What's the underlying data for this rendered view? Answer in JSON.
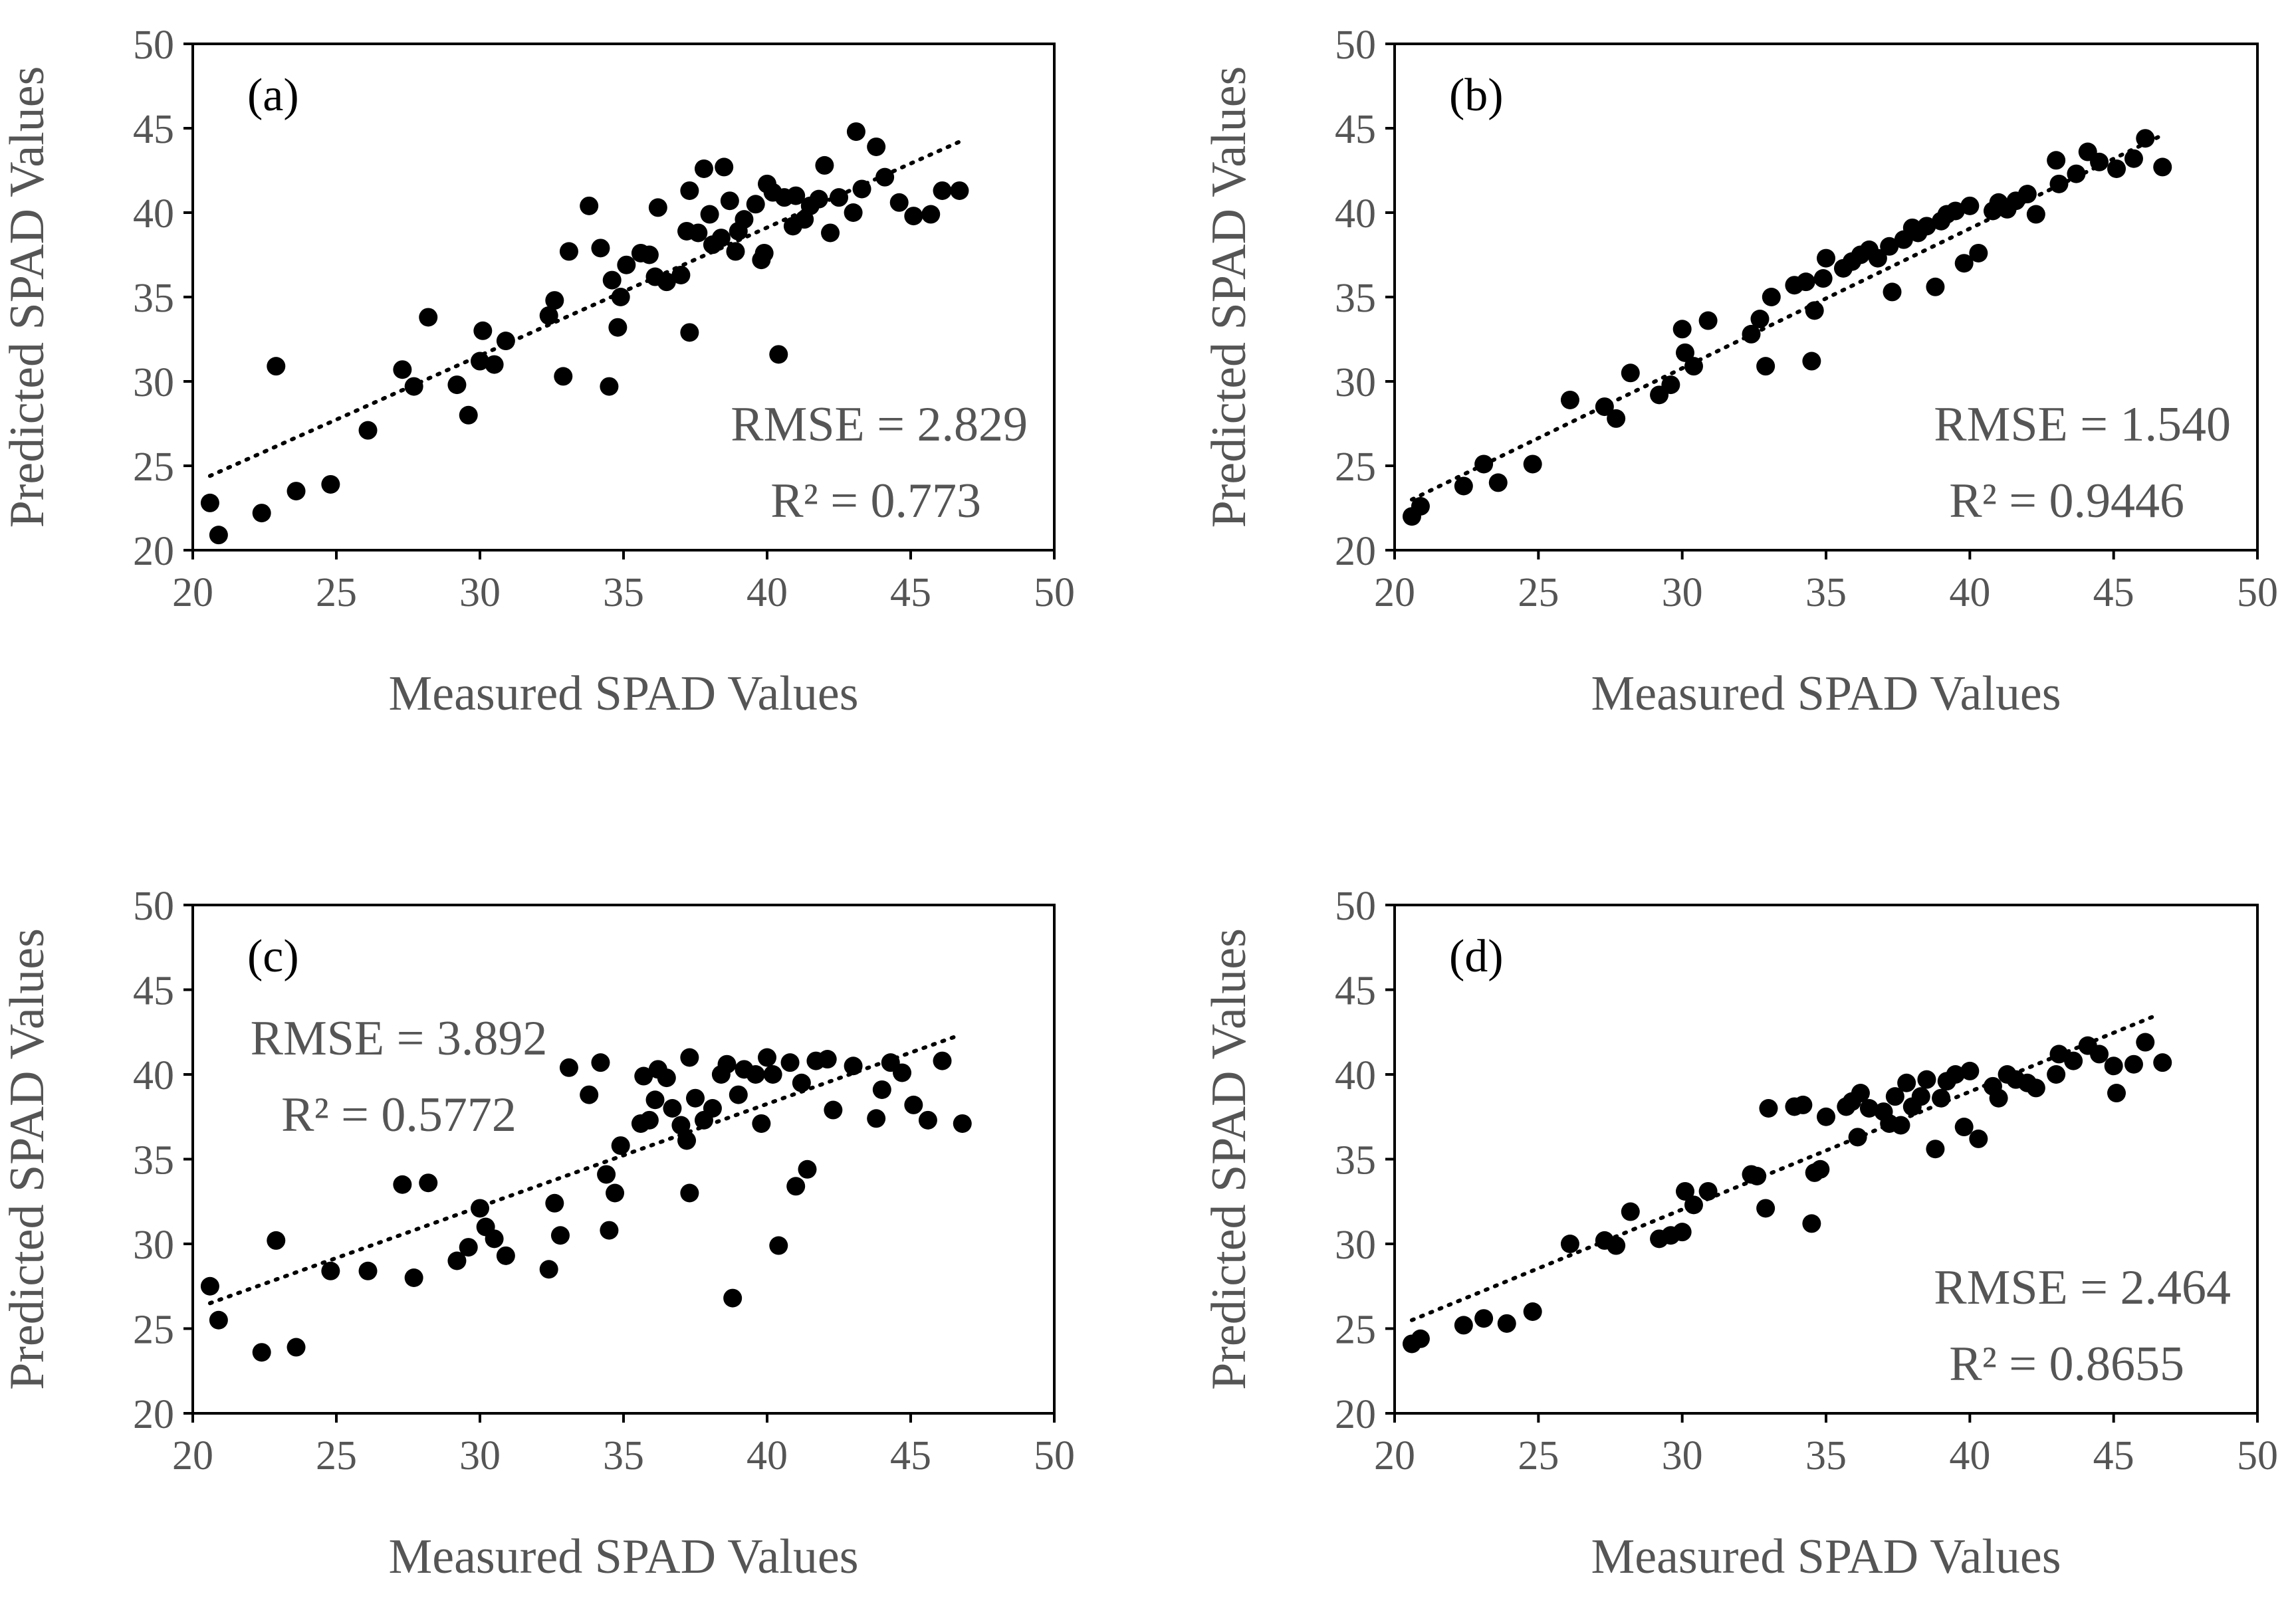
{
  "figure": {
    "style": {
      "marker_color": "#000000",
      "text_color": "#555555",
      "trendline": "dotted"
    }
  },
  "chart_data": [
    {
      "type": "scatter",
      "panel_label": "(a)",
      "xlabel": "Measured SPAD Values",
      "ylabel": "Predicted SPAD Values",
      "xlim": [
        20,
        50
      ],
      "ylim": [
        20,
        50
      ],
      "xticks": [
        20,
        25,
        30,
        35,
        40,
        45,
        50
      ],
      "yticks": [
        20,
        25,
        30,
        35,
        40,
        45,
        50
      ],
      "rmse_text": "RMSE = 2.829",
      "r2_text": "R² = 0.773",
      "stats_position": "bottom-right",
      "trendline": {
        "x": [
          20.6,
          46.7
        ],
        "y": [
          24.4,
          44.2
        ]
      },
      "points": [
        [
          20.6,
          22.8
        ],
        [
          20.9,
          20.9
        ],
        [
          22.4,
          22.2
        ],
        [
          22.9,
          30.9
        ],
        [
          23.6,
          23.5
        ],
        [
          24.8,
          23.9
        ],
        [
          26.1,
          27.1
        ],
        [
          27.3,
          30.7
        ],
        [
          27.7,
          29.7
        ],
        [
          28.2,
          33.8
        ],
        [
          29.2,
          29.8
        ],
        [
          29.6,
          28.0
        ],
        [
          30.0,
          31.2
        ],
        [
          30.1,
          33.0
        ],
        [
          30.5,
          31.0
        ],
        [
          30.9,
          32.4
        ],
        [
          32.4,
          33.9
        ],
        [
          32.6,
          34.8
        ],
        [
          32.9,
          30.3
        ],
        [
          33.1,
          37.7
        ],
        [
          33.8,
          40.4
        ],
        [
          34.2,
          37.9
        ],
        [
          34.5,
          29.7
        ],
        [
          34.6,
          36.0
        ],
        [
          34.8,
          33.2
        ],
        [
          34.9,
          35.0
        ],
        [
          35.1,
          36.9
        ],
        [
          35.6,
          37.6
        ],
        [
          35.9,
          37.5
        ],
        [
          36.1,
          36.2
        ],
        [
          36.2,
          40.3
        ],
        [
          36.5,
          35.9
        ],
        [
          37.0,
          36.3
        ],
        [
          37.2,
          38.9
        ],
        [
          37.3,
          41.3
        ],
        [
          37.3,
          32.9
        ],
        [
          37.6,
          38.8
        ],
        [
          37.8,
          42.6
        ],
        [
          38.0,
          39.9
        ],
        [
          38.1,
          38.1
        ],
        [
          38.4,
          38.5
        ],
        [
          38.5,
          42.7
        ],
        [
          38.7,
          40.7
        ],
        [
          38.9,
          37.7
        ],
        [
          39.0,
          38.9
        ],
        [
          39.2,
          39.6
        ],
        [
          39.6,
          40.5
        ],
        [
          39.8,
          37.2
        ],
        [
          39.9,
          37.6
        ],
        [
          40.0,
          41.7
        ],
        [
          40.2,
          41.2
        ],
        [
          40.4,
          31.6
        ],
        [
          40.6,
          40.9
        ],
        [
          40.9,
          39.2
        ],
        [
          41.0,
          41.0
        ],
        [
          41.3,
          39.6
        ],
        [
          41.5,
          40.4
        ],
        [
          41.8,
          40.8
        ],
        [
          42.0,
          42.8
        ],
        [
          42.2,
          38.8
        ],
        [
          42.5,
          40.9
        ],
        [
          43.0,
          40.0
        ],
        [
          43.1,
          44.8
        ],
        [
          43.3,
          41.4
        ],
        [
          43.8,
          43.9
        ],
        [
          44.1,
          42.1
        ],
        [
          44.6,
          40.6
        ],
        [
          45.1,
          39.8
        ],
        [
          45.7,
          39.9
        ],
        [
          46.1,
          41.3
        ],
        [
          46.7,
          41.3
        ]
      ]
    },
    {
      "type": "scatter",
      "panel_label": "(b)",
      "xlabel": "Measured SPAD Values",
      "ylabel": "Predicted SPAD Values",
      "xlim": [
        20,
        50
      ],
      "ylim": [
        20,
        50
      ],
      "xticks": [
        20,
        25,
        30,
        35,
        40,
        45,
        50
      ],
      "yticks": [
        20,
        25,
        30,
        35,
        40,
        45,
        50
      ],
      "rmse_text": "RMSE = 1.540",
      "r2_text": "R² = 0.9446",
      "stats_position": "bottom-right",
      "trendline": {
        "x": [
          20.6,
          46.7
        ],
        "y": [
          23.0,
          44.6
        ]
      },
      "points": [
        [
          20.6,
          22.0
        ],
        [
          20.9,
          22.6
        ],
        [
          22.4,
          23.8
        ],
        [
          23.1,
          25.1
        ],
        [
          23.6,
          24.0
        ],
        [
          24.8,
          25.1
        ],
        [
          26.1,
          28.9
        ],
        [
          27.3,
          28.5
        ],
        [
          27.7,
          27.8
        ],
        [
          28.2,
          30.5
        ],
        [
          29.2,
          29.2
        ],
        [
          29.6,
          29.8
        ],
        [
          30.0,
          33.1
        ],
        [
          30.1,
          31.7
        ],
        [
          30.4,
          30.9
        ],
        [
          30.9,
          33.6
        ],
        [
          32.4,
          32.8
        ],
        [
          32.7,
          33.7
        ],
        [
          32.9,
          30.9
        ],
        [
          33.1,
          35.0
        ],
        [
          33.9,
          35.7
        ],
        [
          34.3,
          35.9
        ],
        [
          34.5,
          31.2
        ],
        [
          34.6,
          34.2
        ],
        [
          34.9,
          36.1
        ],
        [
          35.0,
          37.3
        ],
        [
          35.6,
          36.7
        ],
        [
          35.9,
          37.1
        ],
        [
          36.2,
          37.5
        ],
        [
          36.5,
          37.8
        ],
        [
          36.8,
          37.3
        ],
        [
          37.2,
          38.0
        ],
        [
          37.3,
          35.3
        ],
        [
          37.7,
          38.4
        ],
        [
          38.0,
          39.1
        ],
        [
          38.2,
          38.8
        ],
        [
          38.5,
          39.2
        ],
        [
          38.8,
          35.6
        ],
        [
          39.0,
          39.5
        ],
        [
          39.2,
          39.9
        ],
        [
          39.5,
          40.1
        ],
        [
          39.8,
          37.0
        ],
        [
          40.0,
          40.4
        ],
        [
          40.3,
          37.6
        ],
        [
          40.8,
          40.1
        ],
        [
          41.0,
          40.6
        ],
        [
          41.3,
          40.2
        ],
        [
          41.6,
          40.7
        ],
        [
          42.0,
          41.1
        ],
        [
          42.3,
          39.9
        ],
        [
          43.0,
          43.1
        ],
        [
          43.1,
          41.7
        ],
        [
          43.7,
          42.3
        ],
        [
          44.1,
          43.6
        ],
        [
          44.5,
          43.0
        ],
        [
          45.1,
          42.6
        ],
        [
          45.7,
          43.2
        ],
        [
          46.1,
          44.4
        ],
        [
          46.7,
          42.7
        ]
      ]
    },
    {
      "type": "scatter",
      "panel_label": "(c)",
      "xlabel": "Measured SPAD Values",
      "ylabel": "Predicted SPAD Values",
      "xlim": [
        20,
        50
      ],
      "ylim": [
        20,
        50
      ],
      "xticks": [
        20,
        25,
        30,
        35,
        40,
        45,
        50
      ],
      "yticks": [
        20,
        25,
        30,
        35,
        40,
        45,
        50
      ],
      "rmse_text": "RMSE = 3.892",
      "r2_text": "R² = 0.5772",
      "stats_position": "top-left",
      "trendline": {
        "x": [
          20.6,
          46.5
        ],
        "y": [
          26.5,
          42.2
        ]
      },
      "points": [
        [
          20.6,
          27.5
        ],
        [
          20.9,
          25.5
        ],
        [
          22.4,
          23.6
        ],
        [
          22.9,
          30.2
        ],
        [
          23.6,
          23.9
        ],
        [
          24.8,
          28.4
        ],
        [
          26.1,
          28.4
        ],
        [
          27.3,
          33.5
        ],
        [
          27.7,
          28.0
        ],
        [
          28.2,
          33.6
        ],
        [
          29.2,
          29.0
        ],
        [
          29.6,
          29.8
        ],
        [
          30.0,
          32.1
        ],
        [
          30.2,
          31.0
        ],
        [
          30.5,
          30.3
        ],
        [
          30.9,
          29.3
        ],
        [
          32.4,
          28.5
        ],
        [
          32.6,
          32.4
        ],
        [
          32.8,
          30.5
        ],
        [
          33.1,
          40.4
        ],
        [
          33.8,
          38.8
        ],
        [
          34.2,
          40.7
        ],
        [
          34.4,
          34.1
        ],
        [
          34.5,
          30.8
        ],
        [
          34.7,
          33.0
        ],
        [
          34.9,
          35.8
        ],
        [
          35.6,
          37.1
        ],
        [
          35.7,
          39.9
        ],
        [
          35.9,
          37.3
        ],
        [
          36.1,
          38.5
        ],
        [
          36.2,
          40.3
        ],
        [
          36.5,
          39.8
        ],
        [
          36.7,
          38.0
        ],
        [
          37.0,
          37.0
        ],
        [
          37.2,
          36.1
        ],
        [
          37.3,
          41.0
        ],
        [
          37.3,
          33.0
        ],
        [
          37.5,
          38.6
        ],
        [
          37.8,
          37.3
        ],
        [
          38.1,
          38.0
        ],
        [
          38.4,
          40.0
        ],
        [
          38.6,
          40.6
        ],
        [
          38.8,
          26.8
        ],
        [
          39.0,
          38.8
        ],
        [
          39.2,
          40.3
        ],
        [
          39.6,
          40.0
        ],
        [
          39.8,
          37.1
        ],
        [
          40.0,
          41.0
        ],
        [
          40.2,
          40.0
        ],
        [
          40.4,
          29.9
        ],
        [
          40.8,
          40.7
        ],
        [
          41.0,
          33.4
        ],
        [
          41.2,
          39.5
        ],
        [
          41.4,
          34.4
        ],
        [
          41.7,
          40.8
        ],
        [
          42.1,
          40.9
        ],
        [
          42.3,
          37.9
        ],
        [
          43.0,
          40.5
        ],
        [
          43.8,
          37.4
        ],
        [
          44.0,
          39.1
        ],
        [
          44.3,
          40.7
        ],
        [
          44.7,
          40.1
        ],
        [
          45.1,
          38.2
        ],
        [
          45.6,
          37.3
        ],
        [
          46.1,
          40.8
        ],
        [
          46.8,
          37.1
        ]
      ]
    },
    {
      "type": "scatter",
      "panel_label": "(d)",
      "xlabel": "Measured SPAD Values",
      "ylabel": "Predicted SPAD Values",
      "xlim": [
        20,
        50
      ],
      "ylim": [
        20,
        50
      ],
      "xticks": [
        20,
        25,
        30,
        35,
        40,
        45,
        50
      ],
      "yticks": [
        20,
        25,
        30,
        35,
        40,
        45,
        50
      ],
      "rmse_text": "RMSE = 2.464",
      "r2_text": "R² = 0.8655",
      "stats_position": "bottom-right",
      "trendline": {
        "x": [
          20.6,
          46.5
        ],
        "y": [
          25.5,
          43.5
        ]
      },
      "points": [
        [
          20.6,
          24.1
        ],
        [
          20.9,
          24.4
        ],
        [
          22.4,
          25.2
        ],
        [
          23.1,
          25.6
        ],
        [
          23.9,
          25.3
        ],
        [
          24.8,
          26.0
        ],
        [
          26.1,
          30.0
        ],
        [
          27.3,
          30.2
        ],
        [
          27.7,
          29.9
        ],
        [
          28.2,
          31.9
        ],
        [
          29.2,
          30.3
        ],
        [
          29.6,
          30.5
        ],
        [
          30.0,
          30.7
        ],
        [
          30.1,
          33.1
        ],
        [
          30.4,
          32.3
        ],
        [
          30.9,
          33.1
        ],
        [
          32.4,
          34.1
        ],
        [
          32.6,
          34.0
        ],
        [
          32.9,
          32.1
        ],
        [
          33.0,
          38.0
        ],
        [
          33.9,
          38.1
        ],
        [
          34.2,
          38.2
        ],
        [
          34.5,
          31.2
        ],
        [
          34.6,
          34.2
        ],
        [
          34.8,
          34.4
        ],
        [
          35.0,
          37.5
        ],
        [
          35.7,
          38.1
        ],
        [
          35.9,
          38.4
        ],
        [
          36.1,
          36.3
        ],
        [
          36.2,
          38.9
        ],
        [
          36.5,
          38.0
        ],
        [
          37.0,
          37.8
        ],
        [
          37.2,
          37.1
        ],
        [
          37.4,
          38.7
        ],
        [
          37.6,
          37.0
        ],
        [
          37.8,
          39.5
        ],
        [
          38.0,
          38.1
        ],
        [
          38.3,
          38.7
        ],
        [
          38.5,
          39.7
        ],
        [
          38.8,
          35.6
        ],
        [
          39.0,
          38.6
        ],
        [
          39.2,
          39.6
        ],
        [
          39.5,
          40.0
        ],
        [
          39.8,
          36.9
        ],
        [
          40.0,
          40.2
        ],
        [
          40.3,
          36.2
        ],
        [
          40.8,
          39.3
        ],
        [
          41.0,
          38.6
        ],
        [
          41.3,
          40.0
        ],
        [
          41.6,
          39.7
        ],
        [
          42.0,
          39.5
        ],
        [
          42.3,
          39.2
        ],
        [
          43.0,
          40.0
        ],
        [
          43.1,
          41.2
        ],
        [
          43.6,
          40.8
        ],
        [
          44.1,
          41.7
        ],
        [
          44.5,
          41.2
        ],
        [
          45.0,
          40.5
        ],
        [
          45.1,
          38.9
        ],
        [
          45.7,
          40.6
        ],
        [
          46.1,
          41.9
        ],
        [
          46.7,
          40.7
        ]
      ]
    }
  ]
}
